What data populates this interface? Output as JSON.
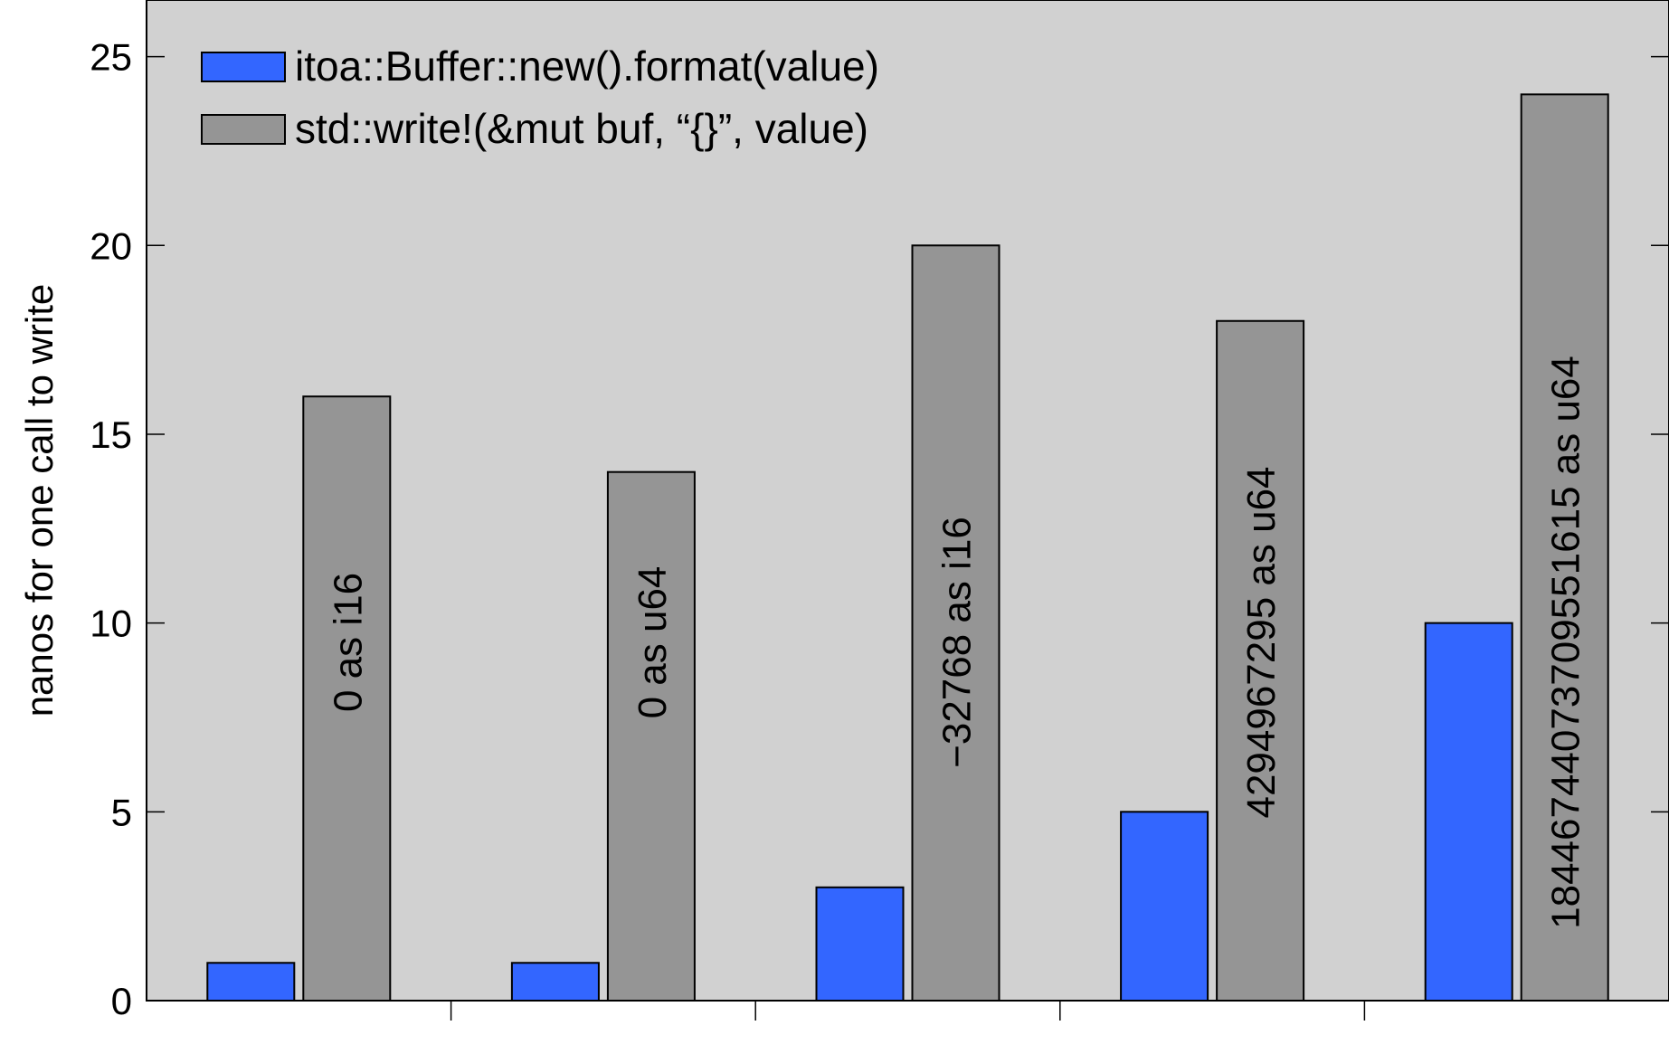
{
  "chart_data": {
    "type": "bar",
    "ylabel": "nanos for one call to write",
    "xlabel": "",
    "ylim": [
      0,
      26.5
    ],
    "yticks": [
      0,
      5,
      10,
      15,
      20,
      25
    ],
    "grid": false,
    "legend_position": "top-left",
    "categories": [
      "0 as i16",
      "0 as u64",
      "−32768 as i16",
      "4294967295 as u64",
      "18446744073709551615 as u64"
    ],
    "series": [
      {
        "name": "itoa::Buffer::new().format(value)",
        "color": "#3366ff",
        "values": [
          1,
          1,
          3,
          5,
          10
        ]
      },
      {
        "name": "std::write!(&mut buf, “{}”, value)",
        "color": "#959595",
        "values": [
          16,
          14,
          20,
          18,
          24
        ]
      }
    ],
    "plot_background": "#d1d1d1"
  }
}
